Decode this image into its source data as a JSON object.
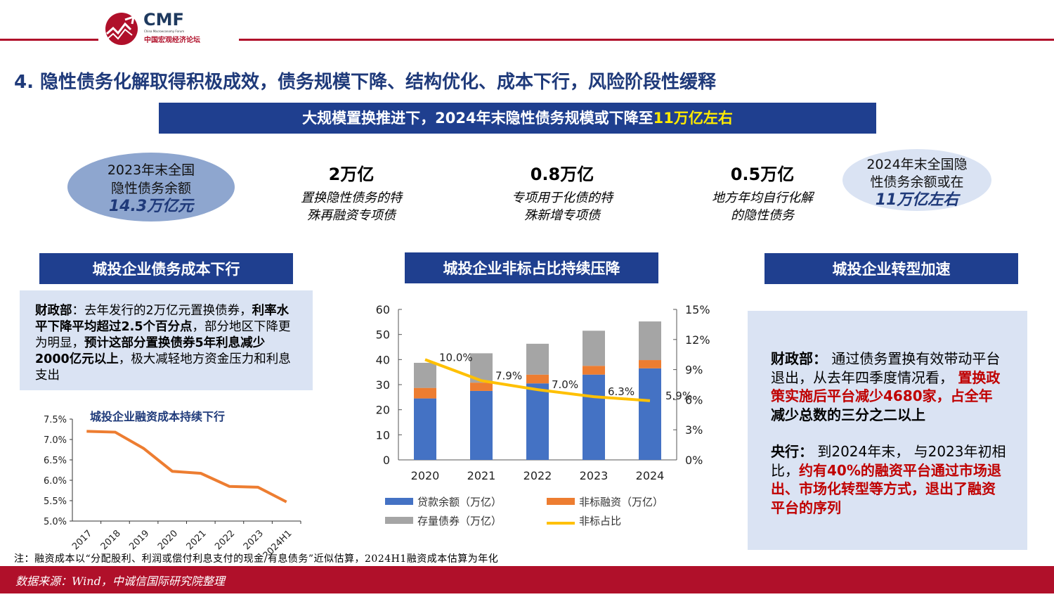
{
  "logo": {
    "name": "CMF",
    "subtitle_en": "China Macroeconomy Forum",
    "subtitle_cn": "中国宏观经济论坛",
    "brand_color": "#b0102a",
    "navy": "#1f3f8f"
  },
  "title": "4. 隐性债务化解取得积极成效，债务规模下降、结构优化、成本下行，风险阶段性缓释",
  "banner": {
    "text": "大规模置换推进下，2024年末隐性债务规模或下降至",
    "highlight": "11万亿左右"
  },
  "left_oval": {
    "line1": "2023年末全国",
    "line2": "隐性债务余额",
    "value": "14.3万亿元"
  },
  "right_oval": {
    "line1": "2024年末全国隐",
    "line2": "性债务余额或在",
    "value": "11万亿左右"
  },
  "stats": [
    {
      "value": "2万亿",
      "line1": "置换隐性债务的特",
      "line2": "殊再融资专项债"
    },
    {
      "value": "0.8万亿",
      "line1": "专项用于化债的特",
      "line2": "殊新增专项债"
    },
    {
      "value": "0.5万亿",
      "line1": "地方年均自行化解",
      "line2": "的隐性债务"
    }
  ],
  "sections": [
    "城投企业债务成本下行",
    "城投企业非标占比持续压降",
    "城投企业转型加速"
  ],
  "left_box": {
    "p1": "财政部",
    "p2": "：去年发行的2万亿元置换债券，",
    "p3": "利率水平下降平均超过2.5个百分点",
    "p4": "，部分地区下降更为明显，",
    "p5": "预计这部分置换债券5年利息减少2000亿元以上",
    "p6": "，极大减轻地方资金压力和利息支出"
  },
  "right_box": {
    "a1": "财政部：",
    "a2": " 通过债务置换有效带动平台退出，从去年四季度情况看， ",
    "a3": "置换政策实施后平台减少4680家，占全年",
    "a4": "减少总数的三分之二以上",
    "b1": "央行：",
    "b2": " 到2024年末， 与2023年初相比，",
    "b3": "约有40%的融资平台通过市场退出、市场化转型等方式，退出了融资平台的序列"
  },
  "chart_data": [
    {
      "type": "line",
      "title": "城投企业融资成本持续下行",
      "categories": [
        "2017",
        "2018",
        "2019",
        "2020",
        "2021",
        "2022",
        "2023",
        "2024H1"
      ],
      "values": [
        7.2,
        7.18,
        6.78,
        6.22,
        6.17,
        5.85,
        5.83,
        5.47
      ],
      "ylim": [
        5.0,
        7.5
      ],
      "yticks": [
        "5.0%",
        "5.5%",
        "6.0%",
        "6.5%",
        "7.0%",
        "7.5%"
      ],
      "color": "#ed7d31",
      "grid": false
    },
    {
      "type": "bar",
      "stacked": true,
      "categories": [
        "2020",
        "2021",
        "2022",
        "2023",
        "2024"
      ],
      "series": [
        {
          "name": "贷款余额（万亿）",
          "values": [
            24.5,
            27.5,
            30.5,
            34,
            36.5
          ],
          "color": "#4472c4"
        },
        {
          "name": "非标融资（万亿）",
          "values": [
            4.2,
            3.3,
            3.5,
            3.5,
            3.3
          ],
          "color": "#ed7d31"
        },
        {
          "name": "存量债券（万亿）",
          "values": [
            10,
            11.7,
            12.3,
            14,
            15.4
          ],
          "color": "#a5a5a5"
        }
      ],
      "line_series": {
        "name": "非标占比",
        "values": [
          10.0,
          7.9,
          7.0,
          6.3,
          5.9
        ],
        "labels": [
          "10.0%",
          "7.9%",
          "7.0%",
          "6.3%",
          "5.9%"
        ],
        "color": "#ffc000"
      },
      "ylim": [
        0,
        60
      ],
      "yticks": [
        "0",
        "10",
        "20",
        "30",
        "40",
        "50",
        "60"
      ],
      "y2lim": [
        0,
        15
      ],
      "y2ticks": [
        "0%",
        "3%",
        "6%",
        "9%",
        "12%",
        "15%"
      ],
      "legend": "bottom",
      "grid": false
    }
  ],
  "note": "注：融资成本以“分配股利、利润或偿付利息支付的现金/有息债务”近似估算，2024H1融资成本估算为年化",
  "footer": "数据来源：Wind，中诚信国际研究院整理"
}
